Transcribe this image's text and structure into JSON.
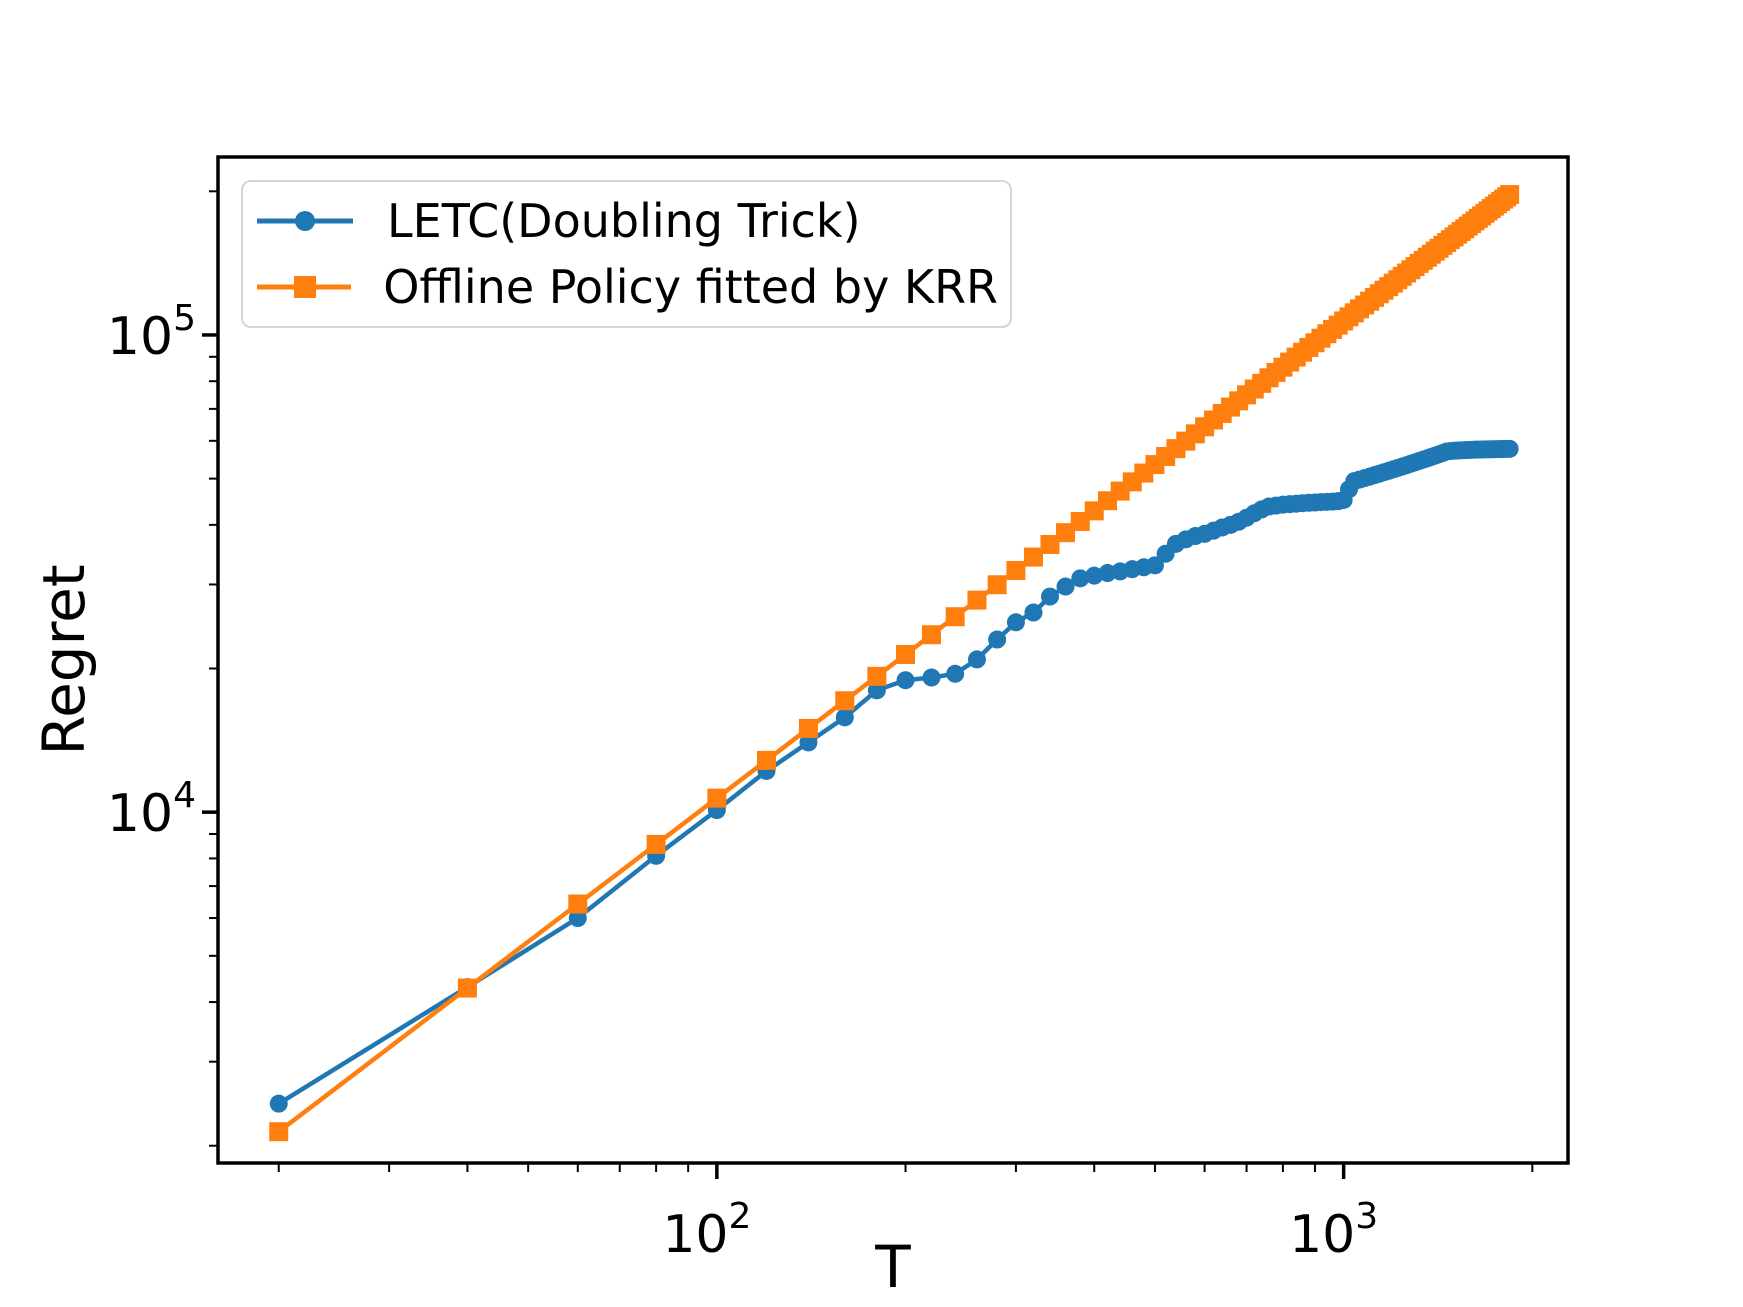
{
  "chart_data": {
    "type": "line",
    "title": "",
    "xlabel": "T",
    "ylabel": "Regret",
    "x_scale": "log",
    "y_scale": "log",
    "xlim": [
      16,
      2280
    ],
    "ylim": [
      1840,
      236000
    ],
    "grid": false,
    "legend_position": "upper left",
    "x_major_ticks": [
      {
        "value": 100,
        "base": "10",
        "exp": "2"
      },
      {
        "value": 1000,
        "base": "10",
        "exp": "3"
      }
    ],
    "y_major_ticks": [
      {
        "value": 10000,
        "base": "10",
        "exp": "4"
      },
      {
        "value": 100000,
        "base": "10",
        "exp": "5"
      }
    ],
    "x_minor_ticks": [
      20,
      30,
      40,
      50,
      60,
      70,
      80,
      90,
      200,
      300,
      400,
      500,
      600,
      700,
      800,
      900,
      2000
    ],
    "y_minor_ticks": [
      2000,
      3000,
      4000,
      5000,
      6000,
      7000,
      8000,
      9000,
      20000,
      30000,
      40000,
      50000,
      60000,
      70000,
      80000,
      90000,
      200000
    ],
    "x": [
      20,
      40,
      60,
      80,
      100,
      120,
      140,
      160,
      180,
      200,
      220,
      240,
      260,
      280,
      300,
      320,
      340,
      360,
      380,
      400,
      420,
      440,
      460,
      480,
      500,
      520,
      540,
      560,
      580,
      600,
      620,
      640,
      660,
      680,
      700,
      720,
      740,
      760,
      780,
      800,
      820,
      840,
      860,
      880,
      900,
      920,
      940,
      960,
      980,
      1000,
      1020,
      1040,
      1060,
      1080,
      1100,
      1120,
      1140,
      1160,
      1180,
      1200,
      1220,
      1240,
      1260,
      1280,
      1300,
      1320,
      1340,
      1360,
      1380,
      1400,
      1420,
      1440,
      1460,
      1480,
      1500,
      1520,
      1540,
      1560,
      1580,
      1600,
      1620,
      1640,
      1660,
      1680,
      1700,
      1720,
      1740,
      1760,
      1780,
      1800,
      1820,
      1840
    ],
    "series": [
      {
        "name": "LETC(Doubling Trick)",
        "color": "#1f77b4",
        "marker": "circle",
        "values": [
          2450,
          4300,
          6000,
          8100,
          10100,
          12200,
          14000,
          15800,
          18000,
          18900,
          19150,
          19500,
          20900,
          23000,
          25000,
          26200,
          28300,
          29700,
          30900,
          31300,
          31700,
          31950,
          32300,
          32600,
          32900,
          34800,
          36500,
          37300,
          37900,
          38300,
          38900,
          39500,
          40000,
          40600,
          41400,
          42300,
          43100,
          43700,
          43900,
          44100,
          44200,
          44300,
          44400,
          44500,
          44550,
          44650,
          44700,
          44750,
          44850,
          45100,
          47500,
          49400,
          49760,
          50120,
          50480,
          50840,
          51200,
          51560,
          51920,
          52280,
          52640,
          53000,
          53360,
          53720,
          54080,
          54440,
          54800,
          55160,
          55520,
          55880,
          56240,
          56600,
          57000,
          57100,
          57200,
          57250,
          57300,
          57350,
          57400,
          57450,
          57500,
          57520,
          57540,
          57560,
          57580,
          57600,
          57620,
          57640,
          57660,
          57680,
          57700,
          57720
        ]
      },
      {
        "name": "Offline Policy fitted by KRR",
        "color": "#ff7f0e",
        "marker": "square",
        "values": [
          2140,
          4280,
          6420,
          8560,
          10700,
          12840,
          14980,
          17120,
          19260,
          21400,
          23540,
          25680,
          27820,
          29960,
          32100,
          34240,
          36380,
          38520,
          40660,
          42800,
          44940,
          47080,
          49220,
          51360,
          53500,
          55640,
          57780,
          59920,
          62060,
          64200,
          66340,
          68480,
          70620,
          72760,
          74900,
          77040,
          79180,
          81320,
          83460,
          85600,
          87740,
          89880,
          92020,
          94160,
          96300,
          98440,
          100580,
          102720,
          104860,
          107000,
          109140,
          111280,
          113420,
          115560,
          117700,
          119840,
          121980,
          124120,
          126260,
          128400,
          130540,
          132680,
          134820,
          136960,
          139100,
          141240,
          143380,
          145520,
          147660,
          149800,
          151940,
          154080,
          156220,
          158360,
          160500,
          162640,
          164780,
          166920,
          169060,
          171200,
          173340,
          175480,
          177620,
          179760,
          181900,
          184040,
          186180,
          188320,
          190460,
          192600,
          194740,
          196880
        ]
      }
    ]
  },
  "style": {
    "spine_color": "#000000",
    "legend_border_color": "#d5d5d5",
    "background": "#ffffff"
  }
}
